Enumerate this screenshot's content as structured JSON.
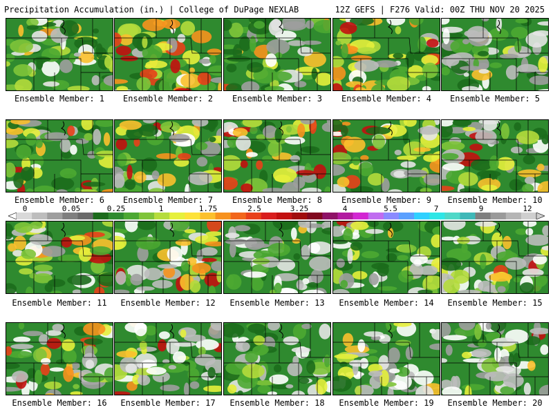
{
  "header": {
    "title": "Precipitation Accumulation (in.) | College of DuPage NEXLAB",
    "run_info": "12Z GEFS | F276 Valid: 00Z THU NOV 20 2025"
  },
  "colorbar": {
    "labels": [
      "0",
      "0.05",
      "0.25",
      "1",
      "1.75",
      "2.5",
      "3.25",
      "4",
      "5.5",
      "7",
      "9",
      "12"
    ],
    "colors": [
      "#d9d9d9",
      "#bdbdbd",
      "#9e9e9e",
      "#7f7f7f",
      "#6a6a6a",
      "#1c6b1c",
      "#2f8a2f",
      "#4ca832",
      "#7fc43a",
      "#b5dc3c",
      "#e6f03c",
      "#fde23a",
      "#fbc02d",
      "#f7921e",
      "#f2661b",
      "#e8401a",
      "#d91e1e",
      "#c21010",
      "#a00c0c",
      "#80081f",
      "#8e1266",
      "#b21aa0",
      "#d226d2",
      "#c06cf0",
      "#8a8aff",
      "#5aa0ff",
      "#2fd0ff",
      "#2ee6e6",
      "#4fd8c8",
      "#3fb8b8",
      "#7f7f7f",
      "#9a9a9a",
      "#b5b5b5",
      "#cfcfcf"
    ]
  },
  "panels": [
    {
      "label": "Ensemble Member: 1"
    },
    {
      "label": "Ensemble Member: 2"
    },
    {
      "label": "Ensemble Member: 3"
    },
    {
      "label": "Ensemble Member: 4"
    },
    {
      "label": "Ensemble Member: 5"
    },
    {
      "label": "Ensemble Member: 6"
    },
    {
      "label": "Ensemble Member: 7"
    },
    {
      "label": "Ensemble Member: 8"
    },
    {
      "label": "Ensemble Member: 9"
    },
    {
      "label": "Ensemble Member: 10"
    },
    {
      "label": "Ensemble Member: 11"
    },
    {
      "label": "Ensemble Member: 12"
    },
    {
      "label": "Ensemble Member: 13"
    },
    {
      "label": "Ensemble Member: 14"
    },
    {
      "label": "Ensemble Member: 15"
    },
    {
      "label": "Ensemble Member: 16"
    },
    {
      "label": "Ensemble Member: 17"
    },
    {
      "label": "Ensemble Member: 18"
    },
    {
      "label": "Ensemble Member: 19"
    },
    {
      "label": "Ensemble Member: 20"
    }
  ]
}
